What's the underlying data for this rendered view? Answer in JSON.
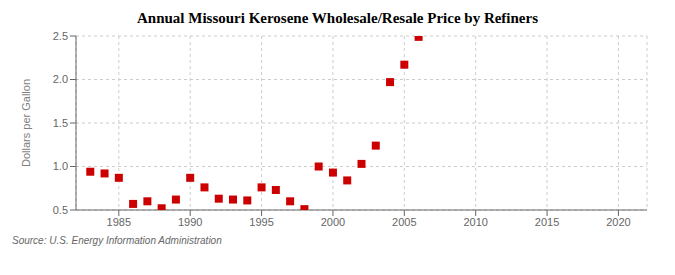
{
  "chart_data": {
    "type": "scatter",
    "title": "Annual Missouri Kerosene Wholesale/Resale Price by Refiners",
    "ylabel": "Dollars per Gallon",
    "annotations": [
      "Source: U.S. Energy Information Administration"
    ],
    "x": [
      1983,
      1984,
      1985,
      1986,
      1987,
      1988,
      1989,
      1990,
      1991,
      1992,
      1993,
      1994,
      1995,
      1996,
      1997,
      1998,
      1999,
      2000,
      2001,
      2002,
      2003,
      2004,
      2005,
      2006
    ],
    "values": [
      0.94,
      0.92,
      0.87,
      0.57,
      0.6,
      0.52,
      0.62,
      0.87,
      0.76,
      0.63,
      0.62,
      0.61,
      0.76,
      0.73,
      0.6,
      0.51,
      1.0,
      0.93,
      0.84,
      1.03,
      1.24,
      1.97,
      2.17,
      2.49
    ],
    "color": "#cc0000",
    "marker": "square",
    "xlim": [
      1982,
      2022
    ],
    "ylim": [
      0.5,
      2.5
    ],
    "xticks": [
      1985,
      1990,
      1995,
      2000,
      2005,
      2010,
      2015,
      2020
    ],
    "yticks": [
      0.5,
      {
        "value": 1,
        "label": "1.0"
      },
      {
        "value": 1.5,
        "label": "1.5"
      },
      {
        "value": 2,
        "label": "2.0"
      },
      2.5
    ],
    "grid": true
  }
}
